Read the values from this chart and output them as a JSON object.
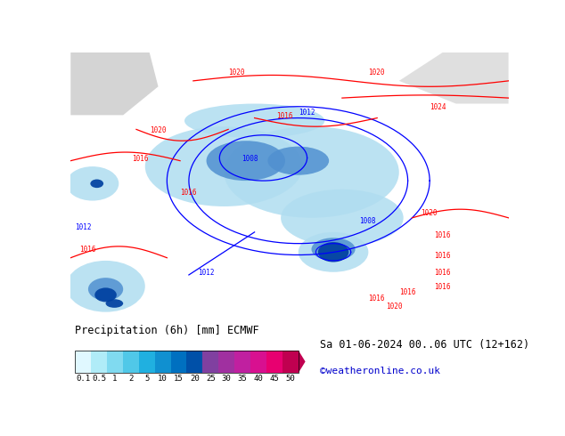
{
  "title_left": "Precipitation (6h) [mm] ECMWF",
  "title_right_line1": "Sa 01-06-2024 00..06 UTC (12+162)",
  "title_right_line2": "©weatheronline.co.uk",
  "colorbar_values": [
    0.1,
    0.5,
    1,
    2,
    5,
    10,
    15,
    20,
    25,
    30,
    35,
    40,
    45,
    50
  ],
  "colorbar_colors": [
    "#e0f8ff",
    "#b0ecf8",
    "#80daf0",
    "#50c8e8",
    "#20b0e0",
    "#1090d0",
    "#0070c0",
    "#0050a8",
    "#8040a0",
    "#a030a0",
    "#c020a0",
    "#d81090",
    "#e80070",
    "#c00050"
  ],
  "bg_color": "#ffffff",
  "map_bg": "#c8e6c8",
  "fig_width": 6.34,
  "fig_height": 4.9
}
